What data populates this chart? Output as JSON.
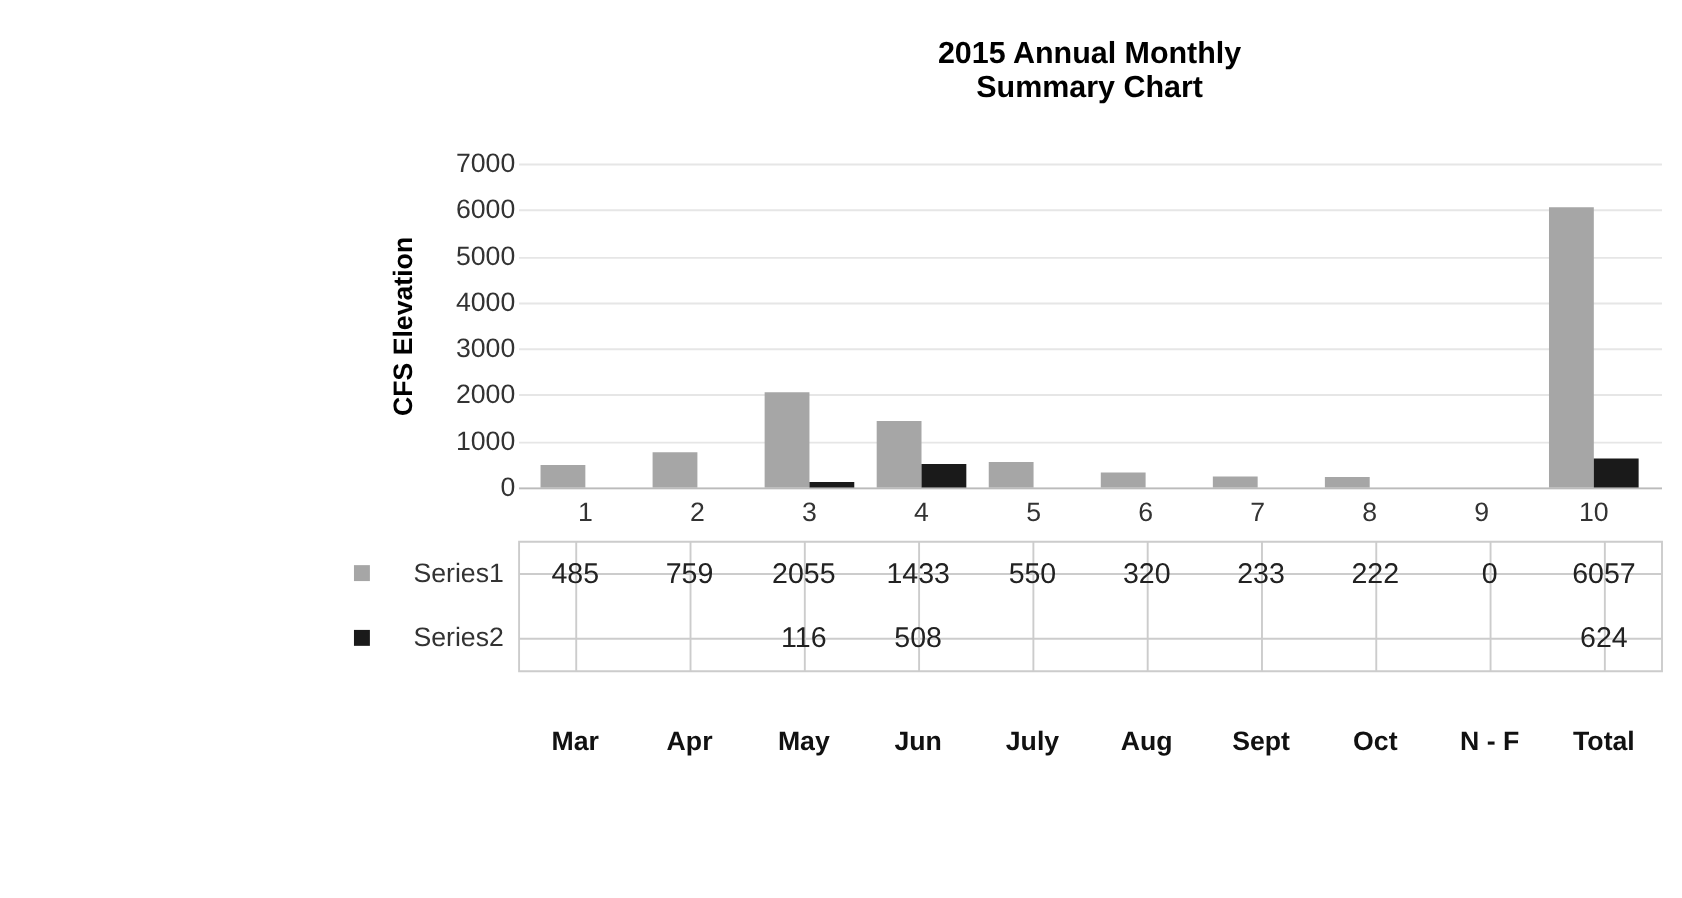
{
  "chart_data": {
    "type": "bar",
    "title": "2015 Annual Monthly Summary Chart",
    "ylabel": "CFS Elevation",
    "categories": [
      "1",
      "2",
      "3",
      "4",
      "5",
      "6",
      "7",
      "8",
      "9",
      "10"
    ],
    "series": [
      {
        "name": "Series1",
        "color": "#a6a6a6",
        "values": [
          485,
          759,
          2055,
          1433,
          550,
          320,
          233,
          222,
          0,
          6057
        ]
      },
      {
        "name": "Series2",
        "color": "#1a1a1a",
        "values": [
          null,
          null,
          116,
          508,
          null,
          null,
          null,
          null,
          null,
          624
        ]
      }
    ],
    "ylim": [
      0,
      7000
    ],
    "yticks": [
      0,
      1000,
      2000,
      3000,
      4000,
      5000,
      6000,
      7000
    ],
    "grid": "y",
    "legend": "bottom",
    "data_labels": true,
    "annotations": [
      "Mar",
      "Apr",
      "May",
      "Jun",
      "July",
      "Aug",
      "Sept",
      "Oct",
      "N - F",
      "Total"
    ]
  }
}
